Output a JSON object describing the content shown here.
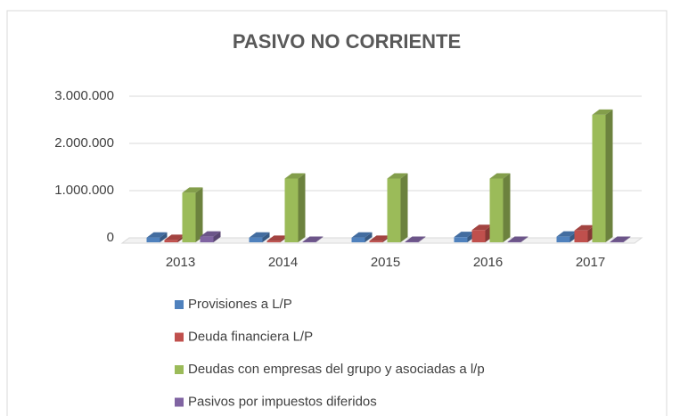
{
  "chart_data": {
    "type": "bar3d",
    "title": "PASIVO NO CORRIENTE",
    "categories": [
      "2013",
      "2014",
      "2015",
      "2016",
      "2017"
    ],
    "series": [
      {
        "name": "Provisiones a L/P",
        "color": "#4f81bd",
        "values": [
          100000,
          100000,
          100000,
          110000,
          120000
        ]
      },
      {
        "name": "Deuda financiera L/P",
        "color": "#c0504d",
        "values": [
          50000,
          30000,
          30000,
          260000,
          250000
        ]
      },
      {
        "name": "Deudas con empresas del grupo y asociadas a l/p",
        "color": "#9bbb59",
        "values": [
          1050000,
          1350000,
          1350000,
          1350000,
          2700000
        ]
      },
      {
        "name": "Pasivos por impuestos diferidos",
        "color": "#8064a2",
        "values": [
          120000,
          10000,
          10000,
          10000,
          10000
        ]
      }
    ],
    "ylim": [
      0,
      3000000
    ],
    "yticks": [
      0,
      {
        "value": 1000000,
        "label": "1.000.000"
      },
      {
        "value": 2000000,
        "label": "2.000.000"
      },
      {
        "value": 3000000,
        "label": "3.000.000"
      }
    ],
    "grid": true,
    "legend": "bottom"
  }
}
